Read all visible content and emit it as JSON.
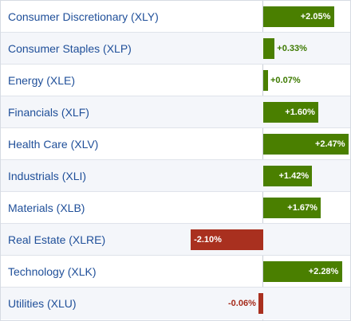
{
  "sectors": [
    {
      "name": "Consumer Discretionary (XLY)",
      "change": 2.05,
      "label": "+2.05%"
    },
    {
      "name": "Consumer Staples (XLP)",
      "change": 0.33,
      "label": "+0.33%"
    },
    {
      "name": "Energy (XLE)",
      "change": 0.07,
      "label": "+0.07%"
    },
    {
      "name": "Financials (XLF)",
      "change": 1.6,
      "label": "+1.60%"
    },
    {
      "name": "Health Care (XLV)",
      "change": 2.47,
      "label": "+2.47%"
    },
    {
      "name": "Industrials (XLI)",
      "change": 1.42,
      "label": "+1.42%"
    },
    {
      "name": "Materials (XLB)",
      "change": 1.67,
      "label": "+1.67%"
    },
    {
      "name": "Real Estate (XLRE)",
      "change": -2.1,
      "label": "-2.10%"
    },
    {
      "name": "Technology (XLK)",
      "change": 2.28,
      "label": "+2.28%"
    },
    {
      "name": "Utilities (XLU)",
      "change": -0.06,
      "label": "-0.06%"
    }
  ],
  "colors": {
    "positive": "#4a7f00",
    "negative": "#a9301f",
    "link": "#1f4f99"
  }
}
